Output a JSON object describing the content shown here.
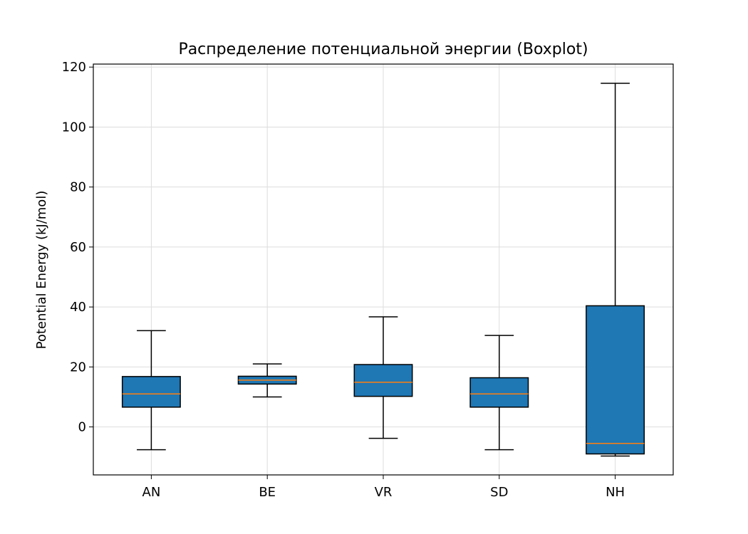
{
  "chart_data": {
    "type": "boxplot",
    "title": "Распределение потенциальной энергии (Boxplot)",
    "xlabel": "",
    "ylabel": "Potential Energy (kJ/mol)",
    "ylim": [
      -16,
      121
    ],
    "yticks": [
      0,
      20,
      40,
      60,
      80,
      100,
      120
    ],
    "grid": true,
    "categories": [
      "AN",
      "BE",
      "VR",
      "SD",
      "NH"
    ],
    "boxes": [
      {
        "label": "AN",
        "whislo": -7.6,
        "q1": 6.6,
        "med": 11.0,
        "q3": 16.8,
        "whishi": 32.1
      },
      {
        "label": "BE",
        "whislo": 10.0,
        "q1": 14.3,
        "med": 15.6,
        "q3": 16.9,
        "whishi": 21.0
      },
      {
        "label": "VR",
        "whislo": -3.8,
        "q1": 10.2,
        "med": 14.9,
        "q3": 20.8,
        "whishi": 36.7
      },
      {
        "label": "SD",
        "whislo": -7.6,
        "q1": 6.6,
        "med": 11.0,
        "q3": 16.4,
        "whishi": 30.5
      },
      {
        "label": "NH",
        "whislo": -9.7,
        "q1": -9.0,
        "med": -5.5,
        "q3": 40.4,
        "whishi": 114.6
      }
    ],
    "colors": {
      "box": "#1f77b4",
      "median": "#ff7f0e",
      "edge": "#000000",
      "grid": "#dddddd"
    }
  }
}
